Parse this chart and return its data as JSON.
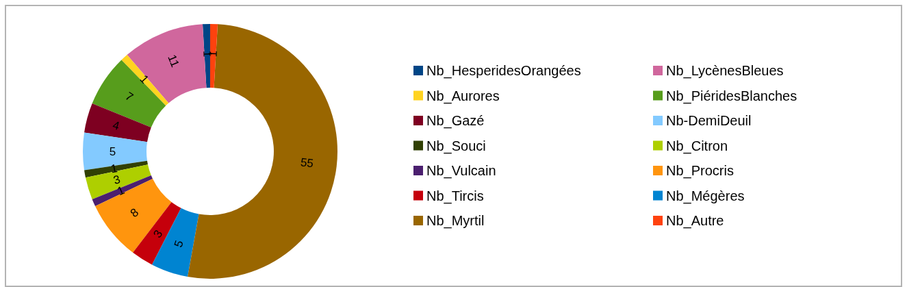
{
  "chart_data": {
    "type": "donut",
    "categories": [
      "Nb_HesperidesOrangées",
      "Nb_LycènesBleues",
      "Nb_Aurores",
      "Nb_PiéridesBlanches",
      "Nb_Gazé",
      "Nb-DemiDeuil",
      "Nb_Souci",
      "Nb_Citron",
      "Nb_Vulcain",
      "Nb_Procris",
      "Nb_Tircis",
      "Nb_Mégères",
      "Nb_Myrtil",
      "Nb_Autre"
    ],
    "values": [
      1,
      11,
      1,
      7,
      4,
      5,
      1,
      3,
      1,
      8,
      3,
      5,
      55,
      1
    ],
    "colors": [
      "#004586",
      "#d0679d",
      "#ffd320",
      "#579d1c",
      "#7e0021",
      "#83caff",
      "#314004",
      "#aecf00",
      "#4b1f6f",
      "#ff950e",
      "#c5000b",
      "#0084d1",
      "#996600",
      "#ff420e"
    ],
    "data_labels": true,
    "legend": "right"
  }
}
